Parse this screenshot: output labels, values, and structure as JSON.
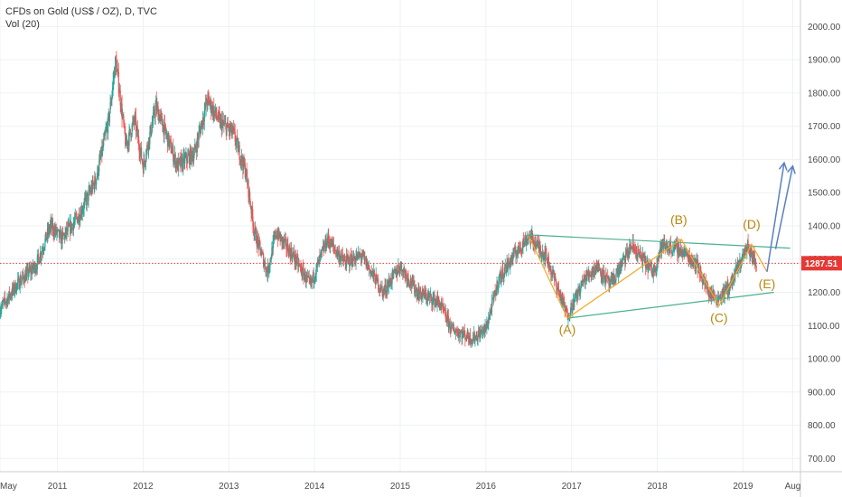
{
  "legend": {
    "symbol": "CFDs on Gold (US$ / OZ), D, TVC",
    "indicator": "Vol (20)"
  },
  "colors": {
    "up": "#26a69a",
    "down": "#ef5350",
    "price_line": "#e53935",
    "wave": "#f5a623",
    "triangle": "#4caf8f",
    "forecast": "#5b7fc4",
    "label": "#b8860b",
    "grid": "#eef1f5"
  },
  "chart_data": {
    "type": "candlestick",
    "title": "CFDs on Gold (US$ / OZ), D, TVC",
    "ylim": [
      660,
      2080
    ],
    "xlim": [
      2010.33,
      2019.67
    ],
    "y_ticks": [
      "2000.00",
      "1900.00",
      "1800.00",
      "1700.00",
      "1600.00",
      "1500.00",
      "1400.00",
      "1300.00",
      "1200.00",
      "1100.00",
      "1000.00",
      "900.00",
      "800.00",
      "700.00"
    ],
    "x_ticks": [
      {
        "label": "May",
        "x": 2010.33
      },
      {
        "label": "2011",
        "x": 2011.0
      },
      {
        "label": "2012",
        "x": 2012.0
      },
      {
        "label": "2013",
        "x": 2013.0
      },
      {
        "label": "2014",
        "x": 2014.0
      },
      {
        "label": "2015",
        "x": 2015.0
      },
      {
        "label": "2016",
        "x": 2016.0
      },
      {
        "label": "2017",
        "x": 2017.0
      },
      {
        "label": "2018",
        "x": 2018.0
      },
      {
        "label": "2019",
        "x": 2019.0
      },
      {
        "label": "Aug",
        "x": 2019.58
      }
    ],
    "current_price": {
      "value": 1287.51,
      "label": "1287.51"
    },
    "price_path": [
      [
        2010.33,
        1150
      ],
      [
        2010.55,
        1230
      ],
      [
        2010.75,
        1280
      ],
      [
        2010.92,
        1400
      ],
      [
        2011.05,
        1360
      ],
      [
        2011.25,
        1430
      ],
      [
        2011.45,
        1540
      ],
      [
        2011.6,
        1720
      ],
      [
        2011.68,
        1900
      ],
      [
        2011.8,
        1640
      ],
      [
        2011.9,
        1720
      ],
      [
        2012.0,
        1580
      ],
      [
        2012.15,
        1760
      ],
      [
        2012.4,
        1580
      ],
      [
        2012.6,
        1620
      ],
      [
        2012.75,
        1780
      ],
      [
        2012.9,
        1710
      ],
      [
        2013.05,
        1680
      ],
      [
        2013.2,
        1560
      ],
      [
        2013.3,
        1380
      ],
      [
        2013.45,
        1260
      ],
      [
        2013.55,
        1380
      ],
      [
        2013.75,
        1310
      ],
      [
        2013.95,
        1220
      ],
      [
        2014.15,
        1360
      ],
      [
        2014.35,
        1290
      ],
      [
        2014.55,
        1310
      ],
      [
        2014.8,
        1200
      ],
      [
        2015.0,
        1280
      ],
      [
        2015.2,
        1200
      ],
      [
        2015.45,
        1170
      ],
      [
        2015.6,
        1090
      ],
      [
        2015.85,
        1060
      ],
      [
        2016.0,
        1090
      ],
      [
        2016.15,
        1240
      ],
      [
        2016.35,
        1320
      ],
      [
        2016.5,
        1370
      ],
      [
        2016.7,
        1310
      ],
      [
        2016.95,
        1130
      ],
      [
        2017.15,
        1240
      ],
      [
        2017.3,
        1280
      ],
      [
        2017.45,
        1220
      ],
      [
        2017.7,
        1340
      ],
      [
        2017.95,
        1260
      ],
      [
        2018.05,
        1340
      ],
      [
        2018.25,
        1330
      ],
      [
        2018.45,
        1290
      ],
      [
        2018.6,
        1200
      ],
      [
        2018.7,
        1180
      ],
      [
        2018.85,
        1220
      ],
      [
        2019.05,
        1340
      ],
      [
        2019.12,
        1300
      ],
      [
        2019.16,
        1287
      ]
    ],
    "triangle_upper": [
      [
        2016.5,
        1373
      ],
      [
        2019.55,
        1333
      ]
    ],
    "triangle_lower": [
      [
        2016.95,
        1122
      ],
      [
        2019.36,
        1200
      ]
    ],
    "wave_path": [
      [
        2016.5,
        1370
      ],
      [
        2016.95,
        1122
      ],
      [
        2018.28,
        1360
      ],
      [
        2018.72,
        1160
      ],
      [
        2019.1,
        1345
      ],
      [
        2019.28,
        1262
      ]
    ],
    "forecast_arrows": [
      {
        "from": [
          2019.28,
          1262
        ],
        "to": [
          2019.48,
          1590
        ]
      },
      {
        "from": [
          2019.38,
          1330
        ],
        "to": [
          2019.58,
          1580
        ]
      }
    ],
    "wave_labels": [
      {
        "text": "(A)",
        "x": 2016.95,
        "y": 1075
      },
      {
        "text": "(B)",
        "x": 2018.25,
        "y": 1405
      },
      {
        "text": "(C)",
        "x": 2018.72,
        "y": 1110
      },
      {
        "text": "(D)",
        "x": 2019.1,
        "y": 1392
      },
      {
        "text": "(E)",
        "x": 2019.28,
        "y": 1212
      }
    ]
  }
}
